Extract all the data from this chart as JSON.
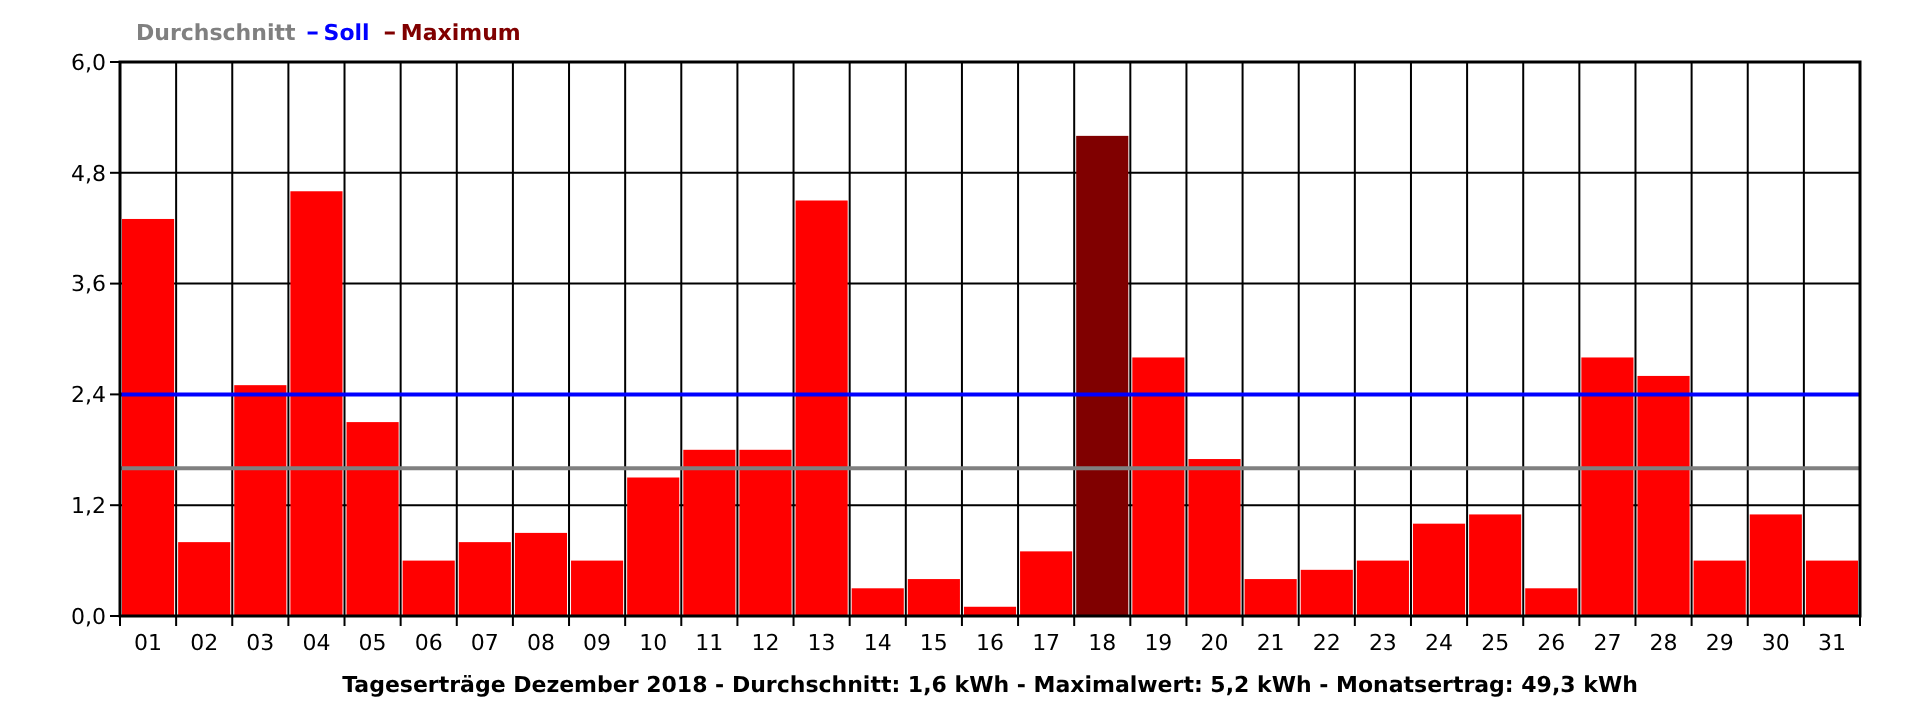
{
  "chart_data": {
    "type": "bar",
    "xlabel": "Tageserträge Dezember 2018 - Durchschnitt: 1,6 kWh - Maximalwert: 5,2 kWh - Monatsertrag: 49,3 kWh",
    "categories": [
      "01",
      "02",
      "03",
      "04",
      "05",
      "06",
      "07",
      "08",
      "09",
      "10",
      "11",
      "12",
      "13",
      "14",
      "15",
      "16",
      "17",
      "18",
      "19",
      "20",
      "21",
      "22",
      "23",
      "24",
      "25",
      "26",
      "27",
      "28",
      "29",
      "30",
      "31"
    ],
    "series": [
      {
        "color": "#ff0000",
        "values": [
          4.3,
          0.8,
          2.5,
          4.6,
          2.1,
          0.6,
          0.8,
          0.9,
          0.6,
          1.5,
          1.8,
          1.8,
          4.5,
          0.3,
          0.4,
          0.1,
          0.7,
          null,
          2.8,
          1.7,
          0.4,
          0.5,
          0.6,
          1.0,
          1.1,
          0.3,
          2.8,
          2.6,
          0.6,
          1.1,
          0.6
        ]
      },
      {
        "name": "Maximum",
        "color": "#800000",
        "values": [
          null,
          null,
          null,
          null,
          null,
          null,
          null,
          null,
          null,
          null,
          null,
          null,
          null,
          null,
          null,
          null,
          null,
          5.2,
          null,
          null,
          null,
          null,
          null,
          null,
          null,
          null,
          null,
          null,
          null,
          null,
          null
        ]
      }
    ],
    "ylim": [
      0,
      6
    ],
    "yticks": [
      {
        "value": 0,
        "label": "0,0"
      },
      {
        "value": 1.2,
        "label": "1,2"
      },
      {
        "value": 2.4,
        "label": "2,4"
      },
      {
        "value": 3.6,
        "label": "3,6"
      },
      {
        "value": 4.8,
        "label": "4,8"
      },
      {
        "value": 6,
        "label": "6,0"
      }
    ],
    "ref_lines": [
      {
        "axis": "y",
        "value": 1.6,
        "label": "Durchschnitt",
        "color": "#808080"
      },
      {
        "axis": "y",
        "value": 2.4,
        "label": "Soll",
        "color": "#0000ff"
      }
    ],
    "grid": true,
    "legend": "top left"
  }
}
